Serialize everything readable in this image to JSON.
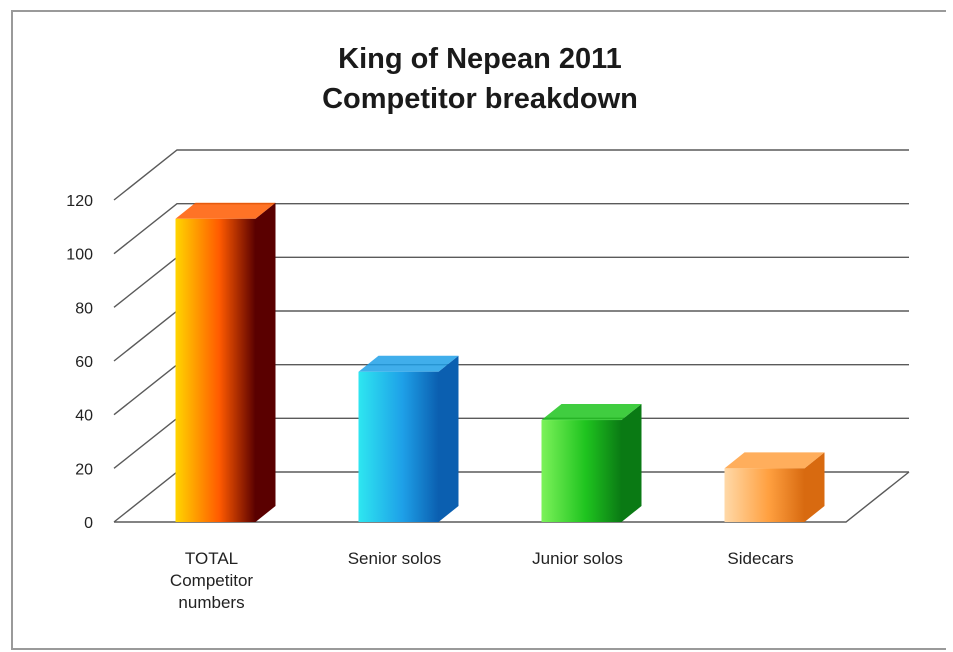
{
  "chart_data": {
    "type": "bar",
    "title_lines": [
      "King of Nepean 2011",
      "Competitor breakdown"
    ],
    "categories": [
      [
        "TOTAL",
        "Competitor",
        "numbers"
      ],
      [
        "Senior solos"
      ],
      [
        "Junior solos"
      ],
      [
        "Sidecars"
      ]
    ],
    "values": [
      113,
      56,
      38,
      20
    ],
    "ylim": [
      0,
      120
    ],
    "yticks": [
      "0",
      "20",
      "40",
      "60",
      "80",
      "100",
      "120"
    ],
    "grid": true,
    "legend": "none",
    "three_d": true,
    "bar_colors": [
      {
        "light": "#ffd500",
        "mid": "#ff5a00",
        "dark": "#5a0000"
      },
      {
        "light": "#2ee6f0",
        "mid": "#1ea0e8",
        "dark": "#0b5fb0"
      },
      {
        "light": "#7cf25a",
        "mid": "#1fc41f",
        "dark": "#0a7a14"
      },
      {
        "light": "#ffd9a8",
        "mid": "#ffa040",
        "dark": "#d86a10"
      }
    ]
  }
}
